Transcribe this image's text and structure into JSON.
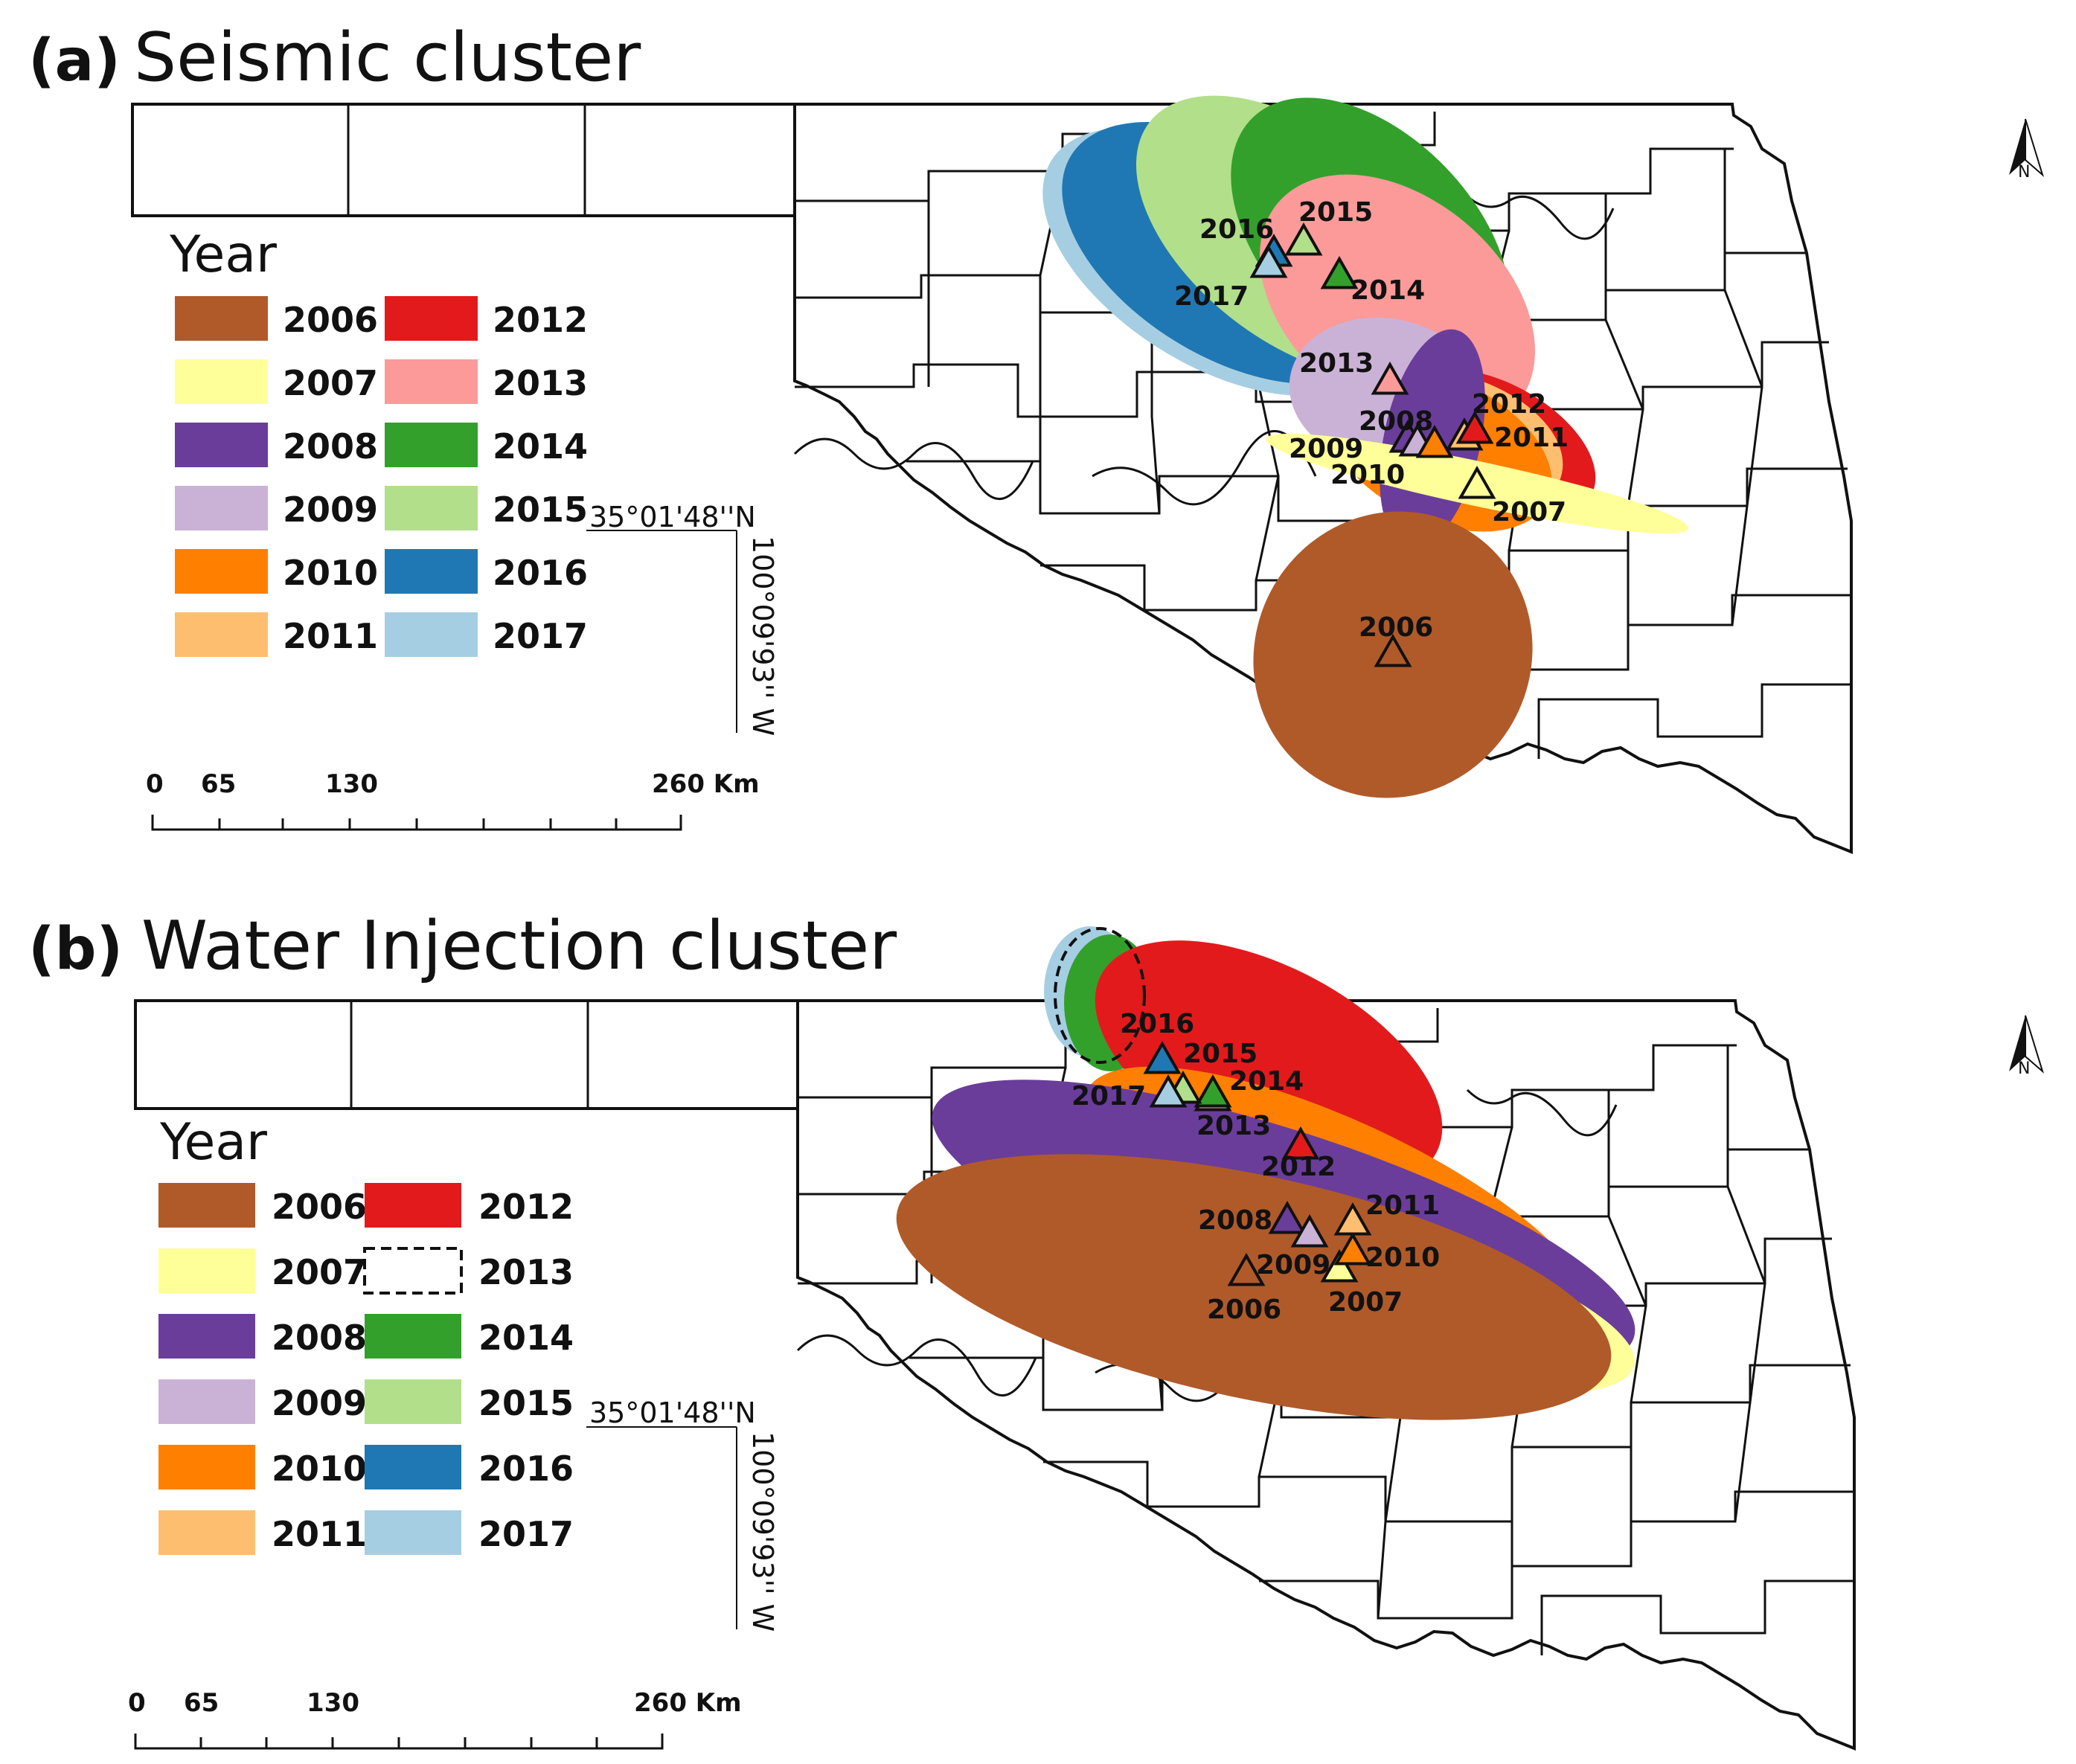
{
  "colors": {
    "2006": "#b05a2a",
    "2007": "#ffff99",
    "2008": "#6a3d9a",
    "2009": "#cab2d6",
    "2010": "#ff7f00",
    "2011": "#fdbf6f",
    "2012": "#e31a1c",
    "2013": "#fb9a99",
    "2014": "#33a02c",
    "2015": "#b2df8a",
    "2016": "#1f78b4",
    "2017": "#a6cee3"
  },
  "panels": [
    {
      "letter": "(a)",
      "title": "Seismic cluster",
      "legend_title": "Year",
      "legend": [
        {
          "year": "2006",
          "style": "fill"
        },
        {
          "year": "2007",
          "style": "fill"
        },
        {
          "year": "2008",
          "style": "fill"
        },
        {
          "year": "2009",
          "style": "fill"
        },
        {
          "year": "2010",
          "style": "fill"
        },
        {
          "year": "2011",
          "style": "fill"
        },
        {
          "year": "2012",
          "style": "fill"
        },
        {
          "year": "2013",
          "style": "fill"
        },
        {
          "year": "2014",
          "style": "fill"
        },
        {
          "year": "2015",
          "style": "fill"
        },
        {
          "year": "2016",
          "style": "fill"
        },
        {
          "year": "2017",
          "style": "fill"
        }
      ],
      "lat_label": "35°01'48''N",
      "lon_label": "100°09'93'' W",
      "scale_labels": [
        "0",
        "65",
        "130",
        "260 Km"
      ],
      "point_labels": [
        "2006",
        "2007",
        "2008",
        "2009",
        "2010",
        "2011",
        "2012",
        "2013",
        "2014",
        "2015",
        "2016",
        "2017"
      ]
    },
    {
      "letter": "(b)",
      "title": "Water Injection cluster",
      "legend_title": "Year",
      "legend": [
        {
          "year": "2006",
          "style": "fill"
        },
        {
          "year": "2007",
          "style": "fill"
        },
        {
          "year": "2008",
          "style": "fill"
        },
        {
          "year": "2009",
          "style": "fill"
        },
        {
          "year": "2010",
          "style": "fill"
        },
        {
          "year": "2011",
          "style": "fill"
        },
        {
          "year": "2012",
          "style": "fill"
        },
        {
          "year": "2013",
          "style": "dashed"
        },
        {
          "year": "2014",
          "style": "fill"
        },
        {
          "year": "2015",
          "style": "fill"
        },
        {
          "year": "2016",
          "style": "fill"
        },
        {
          "year": "2017",
          "style": "fill"
        }
      ],
      "lat_label": "35°01'48''N",
      "lon_label": "100°09'93'' W",
      "scale_labels": [
        "0",
        "65",
        "130",
        "260 Km"
      ],
      "point_labels": [
        "2006",
        "2007",
        "2008",
        "2009",
        "2010",
        "2011",
        "2012",
        "2013",
        "2014",
        "2015",
        "2016",
        "2017"
      ]
    }
  ],
  "north_arrow_label": "N"
}
